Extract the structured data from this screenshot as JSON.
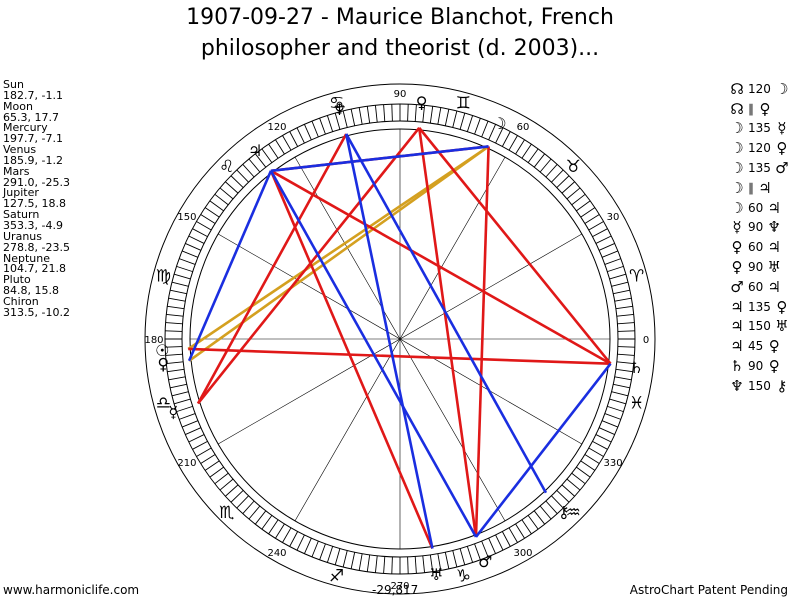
{
  "title": {
    "line1": "1907-09-27 - Maurice Blanchot, French",
    "line2": "philosopher and theorist (d. 2003)..."
  },
  "planets": [
    {
      "name": "Sun",
      "coords": "182.7, -1.1",
      "lon": 182.7,
      "glyph": "☉",
      "color": "#000000"
    },
    {
      "name": "Moon",
      "coords": "65.3, 17.7",
      "lon": 65.3,
      "glyph": "☽",
      "color": "#000000"
    },
    {
      "name": "Mercury",
      "coords": "197.7, -7.1",
      "lon": 197.7,
      "glyph": "☿",
      "color": "#000000"
    },
    {
      "name": "Venus",
      "coords": "185.9, -1.2",
      "lon": 185.9,
      "glyph": "♀",
      "color": "#000000"
    },
    {
      "name": "Mars",
      "coords": "291.0, -25.3",
      "lon": 291.0,
      "glyph": "♂",
      "color": "#000000"
    },
    {
      "name": "Jupiter",
      "coords": "127.5, 18.8",
      "lon": 127.5,
      "glyph": "♃",
      "color": "#000000"
    },
    {
      "name": "Saturn",
      "coords": "353.3, -4.9",
      "lon": 353.3,
      "glyph": "♄",
      "color": "#000000"
    },
    {
      "name": "Uranus",
      "coords": "278.8, -23.5",
      "lon": 278.8,
      "glyph": "♅",
      "color": "#000000"
    },
    {
      "name": "Neptune",
      "coords": "104.7, 21.8",
      "lon": 104.7,
      "glyph": "♆",
      "color": "#000000"
    },
    {
      "name": "Pluto",
      "coords": "84.8, 15.8",
      "lon": 84.8,
      "glyph": "♀",
      "color": "#000000"
    },
    {
      "name": "Chiron",
      "coords": "313.5, -10.2",
      "lon": 313.5,
      "glyph": "⚷",
      "color": "#000000"
    }
  ],
  "node_glyph": "☊",
  "aspects_list": [
    {
      "p1": "☊",
      "aspect": "120",
      "p2": "☽"
    },
    {
      "p1": "☊",
      "aspect": "∥",
      "p2": "♀"
    },
    {
      "p1": "☽",
      "aspect": "135",
      "p2": "☿"
    },
    {
      "p1": "☽",
      "aspect": "120",
      "p2": "♀"
    },
    {
      "p1": "☽",
      "aspect": "135",
      "p2": "♂"
    },
    {
      "p1": "☽",
      "aspect": "∥",
      "p2": "♃"
    },
    {
      "p1": "☽",
      "aspect": "60",
      "p2": "♃"
    },
    {
      "p1": "☿",
      "aspect": "90",
      "p2": "♆"
    },
    {
      "p1": "♀",
      "aspect": "60",
      "p2": "♃"
    },
    {
      "p1": "♀",
      "aspect": "90",
      "p2": "♅"
    },
    {
      "p1": "♂",
      "aspect": "60",
      "p2": "♃"
    },
    {
      "p1": "♃",
      "aspect": "135",
      "p2": "♀"
    },
    {
      "p1": "♃",
      "aspect": "150",
      "p2": "♅"
    },
    {
      "p1": "♃",
      "aspect": "45",
      "p2": "♀"
    },
    {
      "p1": "♄",
      "aspect": "90",
      "p2": "♀"
    },
    {
      "p1": "♆",
      "aspect": "150",
      "p2": "⚷"
    }
  ],
  "zodiac_signs": [
    "♈",
    "♉",
    "♊",
    "♋",
    "♌",
    "♍",
    "♎",
    "♏",
    "♐",
    "♑",
    "♒",
    "♓"
  ],
  "degree_labels": [
    "0",
    "30",
    "60",
    "90",
    "120",
    "150",
    "180",
    "210",
    "240",
    "270",
    "300",
    "330"
  ],
  "aspect_lines": [
    {
      "from": "Sun",
      "to": "Moon",
      "color": "#d4a020"
    },
    {
      "from": "Venus",
      "to": "Moon",
      "color": "#d4a020"
    },
    {
      "from": "Sun",
      "to": "Saturn",
      "color": "#e01818"
    },
    {
      "from": "Mercury",
      "to": "Neptune",
      "color": "#e01818"
    },
    {
      "from": "Mercury",
      "to": "Pluto",
      "color": "#e01818"
    },
    {
      "from": "Pluto",
      "to": "Mars",
      "color": "#e01818"
    },
    {
      "from": "Pluto",
      "to": "Saturn",
      "color": "#e01818"
    },
    {
      "from": "Jupiter",
      "to": "Moon",
      "color": "#e01818"
    },
    {
      "from": "Jupiter",
      "to": "Saturn",
      "color": "#e01818"
    },
    {
      "from": "Jupiter",
      "to": "Uranus",
      "color": "#e01818"
    },
    {
      "from": "Moon",
      "to": "Mars",
      "color": "#e01818"
    },
    {
      "from": "Jupiter",
      "to": "Moon",
      "color": "#1a2ee0"
    },
    {
      "from": "Neptune",
      "to": "Chiron",
      "color": "#1a2ee0"
    },
    {
      "from": "Jupiter",
      "to": "Mars",
      "color": "#1a2ee0"
    },
    {
      "from": "Venus",
      "to": "Jupiter",
      "color": "#1a2ee0"
    },
    {
      "from": "Saturn",
      "to": "Mars",
      "color": "#1a2ee0"
    },
    {
      "from": "Neptune",
      "to": "Uranus",
      "color": "#1a2ee0"
    }
  ],
  "footer": {
    "left": "www.harmoniclife.com",
    "center": "-29,817",
    "right": "AstroChart Patent Pending"
  }
}
